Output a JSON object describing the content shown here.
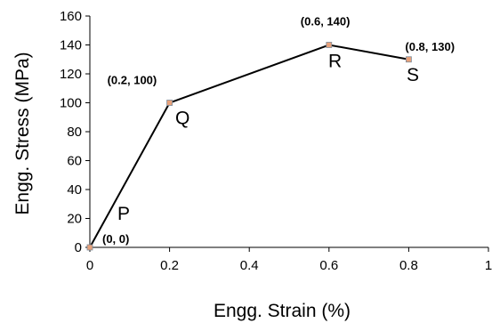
{
  "chart_data": {
    "type": "line",
    "title": "",
    "xlabel": "Engg. Strain (%)",
    "ylabel": "Engg. Stress (MPa)",
    "xlim": [
      0,
      1
    ],
    "ylim": [
      0,
      160
    ],
    "xticks": [
      0,
      0.2,
      0.4,
      0.6,
      0.8,
      1
    ],
    "yticks": [
      0,
      20,
      40,
      60,
      80,
      100,
      120,
      140,
      160
    ],
    "xtick_labels": [
      "0",
      "0.2",
      "0.4",
      "0.6",
      "0.8",
      "1"
    ],
    "ytick_labels": [
      "0",
      "20",
      "40",
      "60",
      "80",
      "100",
      "120",
      "140",
      "160"
    ],
    "grid": false,
    "series": [
      {
        "x": [
          0,
          0.2,
          0.6,
          0.8
        ],
        "y": [
          0,
          100,
          140,
          130
        ],
        "color": "#000000",
        "marker_color": "#e8a17a"
      }
    ],
    "annotations": [
      {
        "text": "(0, 0)",
        "x": 0,
        "y": 0
      },
      {
        "text": "(0.2, 100)",
        "x": 0.2,
        "y": 100
      },
      {
        "text": "(0.6, 140)",
        "x": 0.6,
        "y": 140
      },
      {
        "text": "(0.8, 130)",
        "x": 0.8,
        "y": 130
      }
    ],
    "point_names": [
      {
        "text": "P",
        "x": 0,
        "y": 0
      },
      {
        "text": "Q",
        "x": 0.2,
        "y": 100
      },
      {
        "text": "R",
        "x": 0.6,
        "y": 140
      },
      {
        "text": "S",
        "x": 0.8,
        "y": 130
      }
    ]
  }
}
